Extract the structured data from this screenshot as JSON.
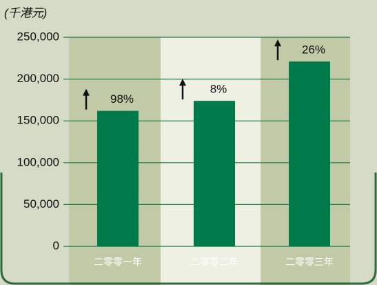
{
  "chart_data": {
    "type": "bar",
    "y_label": "(千港元)",
    "categories": [
      "二零零一年",
      "二零零二年",
      "二零零三年"
    ],
    "values": [
      162000,
      174000,
      221000
    ],
    "growth_labels": [
      "98%",
      "8%",
      "26%"
    ],
    "color": "#007a4a",
    "ylim": [
      0,
      250000
    ],
    "yticks": [
      {
        "value": 0,
        "label": "0"
      },
      {
        "value": 50000,
        "label": "50,000"
      },
      {
        "value": 100000,
        "label": "100,000"
      },
      {
        "value": 150000,
        "label": "150,000"
      },
      {
        "value": 200000,
        "label": "200,000"
      },
      {
        "value": 250000,
        "label": "250,000"
      }
    ],
    "grid": true
  }
}
